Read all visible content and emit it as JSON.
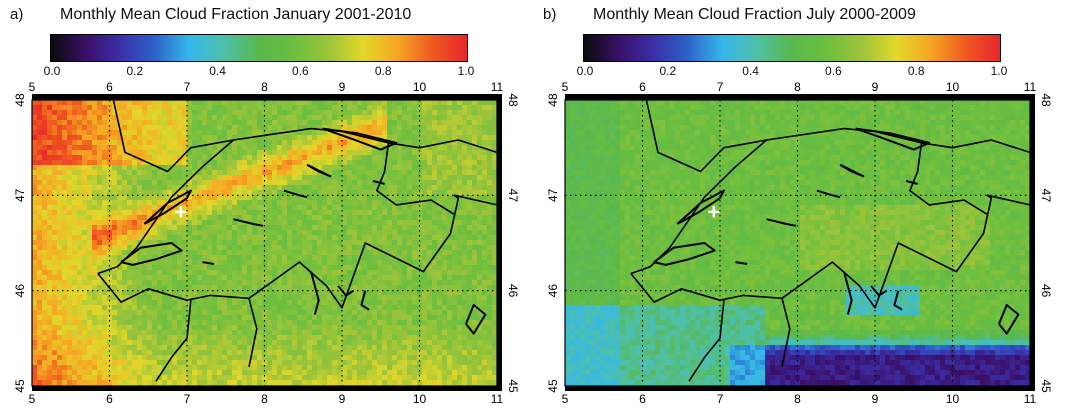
{
  "colors": {
    "colormap": [
      "#0a0a0a",
      "#3a0f66",
      "#3b2fa8",
      "#2c63c9",
      "#34b8ea",
      "#4fc0a8",
      "#59b84c",
      "#6cbf3f",
      "#9cc43a",
      "#e2d82a",
      "#f6a623",
      "#ef5a1f",
      "#e8252b"
    ],
    "lake_outline": "#000000",
    "grid": "#000000",
    "station_marker": "#ffffff"
  },
  "panels": [
    {
      "letter": "a)",
      "title": "Monthly Mean Cloud Fraction January 2001-2010",
      "colorbar_ticks": [
        "0.0",
        "0.2",
        "0.4",
        "0.6",
        "0.8",
        "1.0"
      ],
      "lon_ticks": [
        "5",
        "6",
        "7",
        "8",
        "9",
        "10",
        "11"
      ],
      "lat_ticks": [
        "45",
        "46",
        "47",
        "48"
      ],
      "station_marker": "+"
    },
    {
      "letter": "b)",
      "title": "Monthly Mean Cloud Fraction July 2000-2009",
      "colorbar_ticks": [
        "0.0",
        "0.2",
        "0.4",
        "0.6",
        "0.8",
        "1.0"
      ],
      "lon_ticks": [
        "5",
        "6",
        "7",
        "8",
        "9",
        "10",
        "11"
      ],
      "lat_ticks": [
        "45",
        "46",
        "47",
        "48"
      ],
      "station_marker": "+"
    }
  ]
}
